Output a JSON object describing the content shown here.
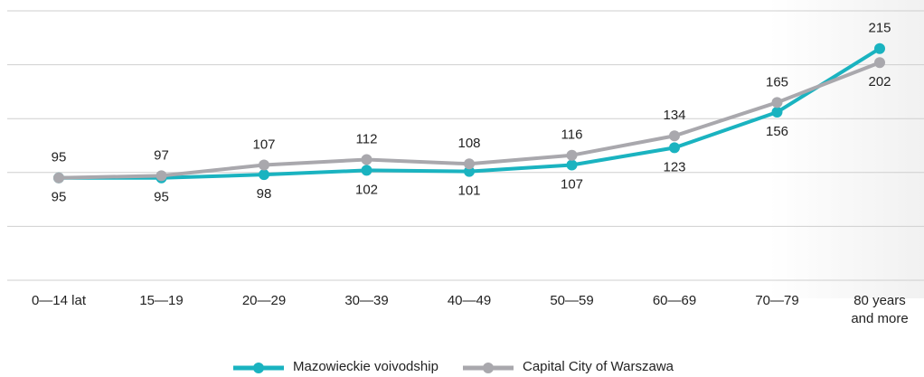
{
  "chart_data": {
    "type": "line",
    "categories": [
      "0—14 lat",
      "15—19",
      "20—29",
      "30—39",
      "40—49",
      "50—59",
      "60—69",
      "70—79",
      "80 years and more"
    ],
    "series": [
      {
        "name": "Mazowieckie voivodship",
        "color": "#1ab3c0",
        "values": [
          95,
          95,
          98,
          102,
          101,
          107,
          123,
          156,
          215
        ]
      },
      {
        "name": "Capital City of Warszawa",
        "color": "#a9a8ad",
        "values": [
          95,
          97,
          107,
          112,
          108,
          116,
          134,
          165,
          202
        ]
      }
    ],
    "ylim": [
      0,
      250
    ],
    "yticks": [
      0,
      50,
      100,
      150,
      200,
      250
    ],
    "grid": true
  }
}
